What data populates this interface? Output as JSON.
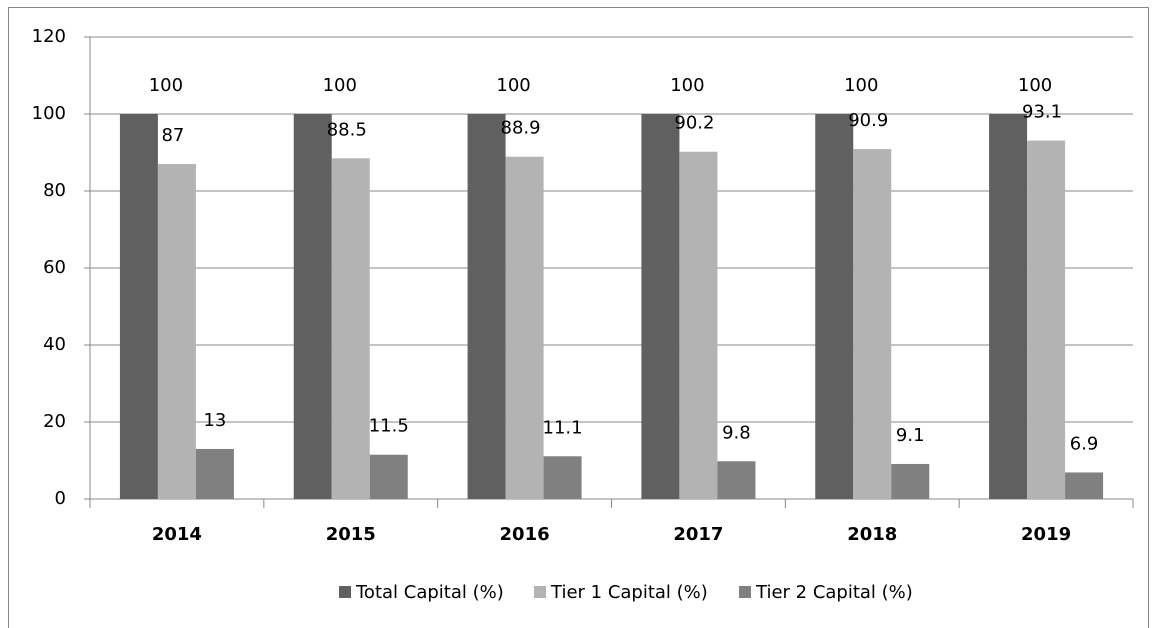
{
  "chart_data": {
    "type": "bar",
    "categories": [
      "2014",
      "2015",
      "2016",
      "2017",
      "2018",
      "2019"
    ],
    "series": [
      {
        "name": "Total Capital (%)",
        "color": "#606060",
        "values": [
          100,
          100,
          100,
          100,
          100,
          100
        ]
      },
      {
        "name": "Tier 1 Capital (%)",
        "color": "#b3b3b3",
        "values": [
          87,
          88.5,
          88.9,
          90.2,
          90.9,
          93.1
        ]
      },
      {
        "name": "Tier 2 Capital (%)",
        "color": "#808080",
        "values": [
          13,
          11.5,
          11.1,
          9.8,
          9.1,
          6.9
        ]
      }
    ],
    "ylim": [
      0,
      120
    ],
    "yticks": [
      0,
      20,
      40,
      60,
      80,
      100,
      120
    ],
    "grid": true,
    "legend": "bottom"
  }
}
